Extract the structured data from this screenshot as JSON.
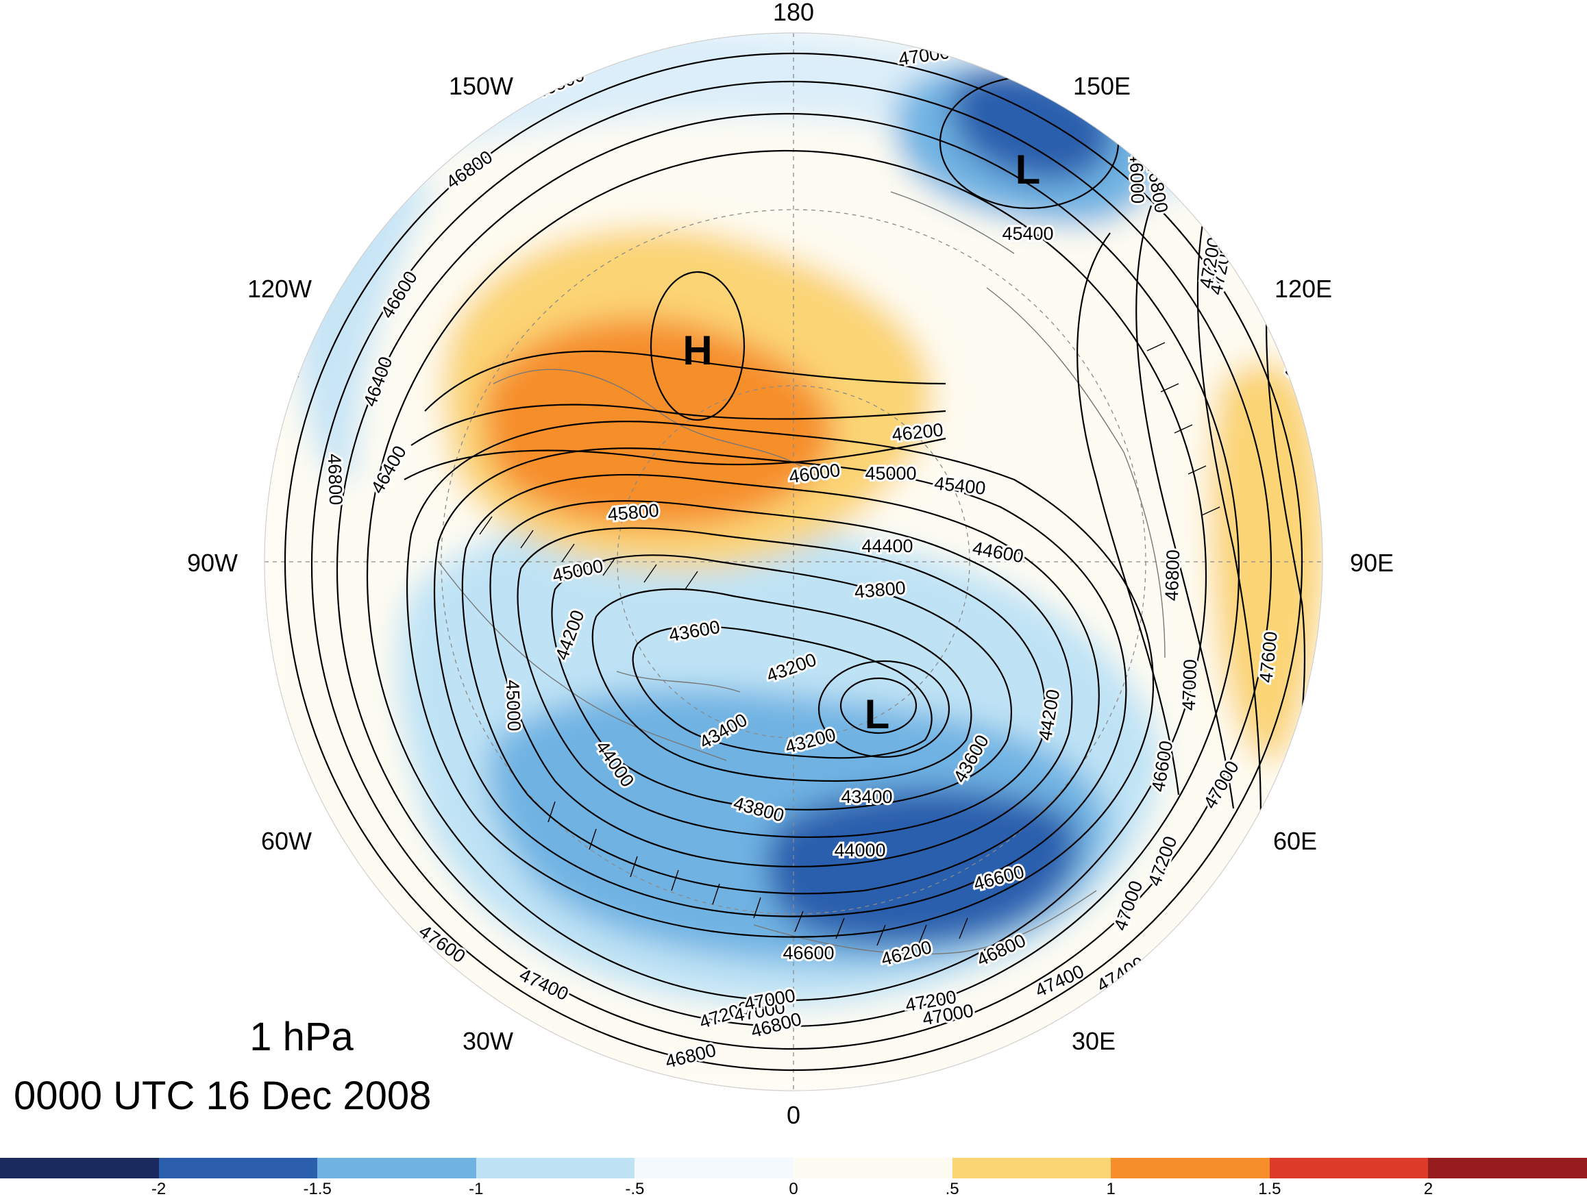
{
  "map": {
    "longitude_labels": [
      "180",
      "150E",
      "120E",
      "90E",
      "60E",
      "30E",
      "0",
      "30W",
      "60W",
      "90W",
      "120W",
      "150W"
    ],
    "contour_labels": [
      "46800",
      "47000",
      "46800",
      "46600",
      "46400",
      "47200",
      "46800",
      "46000",
      "45400",
      "45000",
      "46600",
      "47000",
      "47400",
      "47600",
      "46800",
      "47400",
      "47200",
      "47000",
      "46800",
      "46400",
      "46200",
      "46000",
      "45800",
      "45400",
      "45000",
      "44400",
      "44600",
      "43800",
      "43600",
      "44200",
      "45000",
      "43200",
      "43400",
      "43200",
      "44000",
      "43800",
      "43400",
      "44000",
      "43600",
      "44200",
      "46600",
      "47000",
      "46800",
      "47200",
      "47400",
      "46200",
      "46800",
      "47000",
      "47000",
      "47200",
      "47400",
      "47600",
      "46800",
      "47000",
      "46600",
      "47200",
      "47400",
      "47600"
    ],
    "centers": [
      {
        "label": "H",
        "type": "high"
      },
      {
        "label": "L",
        "type": "low"
      },
      {
        "label": "L",
        "type": "low"
      }
    ]
  },
  "caption": {
    "level": "1 hPa",
    "valid_time": "0000 UTC 16 Dec 2008"
  },
  "colorbar": {
    "ticks": [
      "-2",
      "-1.5",
      "-1",
      "-.5",
      "0",
      ".5",
      "1",
      "1.5",
      "2"
    ],
    "colors": [
      "#1a2a5e",
      "#2b5fad",
      "#6fb3e3",
      "#bfe3f5",
      "#f3f9fd",
      "#fefcf2",
      "#fbd474",
      "#f68e2c",
      "#dd3a2a",
      "#961c1e"
    ]
  }
}
